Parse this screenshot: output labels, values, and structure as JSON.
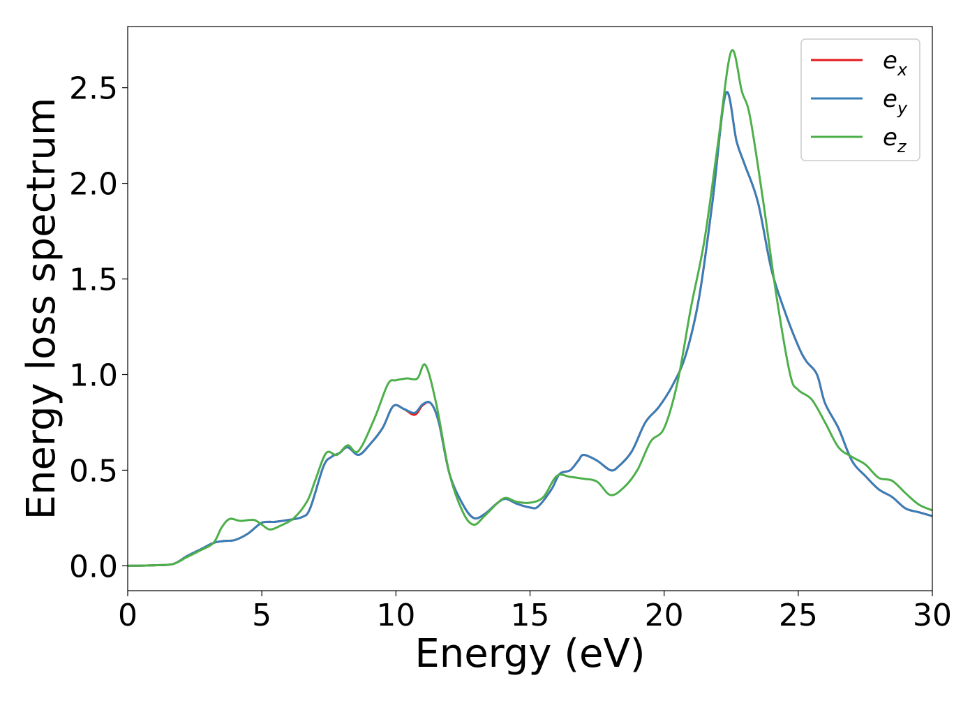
{
  "chart_data": {
    "type": "line",
    "title": "",
    "xlabel": "Energy (eV)",
    "ylabel": "Energy loss spectrum",
    "xlim": [
      0,
      30
    ],
    "ylim": [
      -0.13,
      2.82
    ],
    "xticks": [
      0,
      5,
      10,
      15,
      20,
      25,
      30
    ],
    "xtick_labels": [
      "0",
      "5",
      "10",
      "15",
      "20",
      "25",
      "30"
    ],
    "yticks": [
      0.0,
      0.5,
      1.0,
      1.5,
      2.0,
      2.5
    ],
    "ytick_labels": [
      "0.0",
      "0.5",
      "1.0",
      "1.5",
      "2.0",
      "2.5"
    ],
    "grid": false,
    "legend_position": "top-right",
    "series": [
      {
        "name": "e_x",
        "legend_main": "e",
        "legend_sub": "x",
        "color": "#e41a1c",
        "points": [
          [
            0,
            0
          ],
          [
            1,
            0.003
          ],
          [
            1.7,
            0.01
          ],
          [
            2.2,
            0.05
          ],
          [
            2.7,
            0.085
          ],
          [
            3.2,
            0.12
          ],
          [
            3.6,
            0.13
          ],
          [
            4.0,
            0.135
          ],
          [
            4.5,
            0.17
          ],
          [
            5.0,
            0.225
          ],
          [
            5.5,
            0.23
          ],
          [
            6.0,
            0.24
          ],
          [
            6.5,
            0.255
          ],
          [
            6.8,
            0.3
          ],
          [
            7.3,
            0.52
          ],
          [
            7.6,
            0.57
          ],
          [
            7.9,
            0.59
          ],
          [
            8.2,
            0.62
          ],
          [
            8.6,
            0.58
          ],
          [
            9.0,
            0.63
          ],
          [
            9.5,
            0.72
          ],
          [
            9.9,
            0.835
          ],
          [
            10.3,
            0.82
          ],
          [
            10.7,
            0.79
          ],
          [
            11.0,
            0.84
          ],
          [
            11.3,
            0.85
          ],
          [
            11.6,
            0.75
          ],
          [
            12.0,
            0.48
          ],
          [
            12.5,
            0.32
          ],
          [
            12.9,
            0.25
          ],
          [
            13.3,
            0.27
          ],
          [
            13.8,
            0.33
          ],
          [
            14.1,
            0.35
          ],
          [
            14.5,
            0.325
          ],
          [
            15.0,
            0.305
          ],
          [
            15.3,
            0.31
          ],
          [
            15.8,
            0.4
          ],
          [
            16.1,
            0.48
          ],
          [
            16.5,
            0.5
          ],
          [
            16.8,
            0.55
          ],
          [
            17.0,
            0.58
          ],
          [
            17.5,
            0.55
          ],
          [
            18.0,
            0.5
          ],
          [
            18.3,
            0.52
          ],
          [
            18.8,
            0.6
          ],
          [
            19.3,
            0.75
          ],
          [
            19.8,
            0.83
          ],
          [
            20.3,
            0.94
          ],
          [
            20.8,
            1.1
          ],
          [
            21.3,
            1.4
          ],
          [
            21.8,
            1.9
          ],
          [
            22.3,
            2.47
          ],
          [
            22.7,
            2.22
          ],
          [
            23.0,
            2.1
          ],
          [
            23.5,
            1.9
          ],
          [
            24.0,
            1.55
          ],
          [
            24.5,
            1.33
          ],
          [
            25.0,
            1.15
          ],
          [
            25.3,
            1.07
          ],
          [
            25.7,
            1.0
          ],
          [
            26.0,
            0.85
          ],
          [
            26.5,
            0.72
          ],
          [
            27.0,
            0.55
          ],
          [
            27.5,
            0.47
          ],
          [
            28.0,
            0.4
          ],
          [
            28.5,
            0.36
          ],
          [
            29.0,
            0.3
          ],
          [
            29.5,
            0.28
          ],
          [
            30,
            0.26
          ]
        ]
      },
      {
        "name": "e_y",
        "legend_main": "e",
        "legend_sub": "y",
        "color": "#377eb8",
        "points": [
          [
            0,
            0
          ],
          [
            1,
            0.003
          ],
          [
            1.7,
            0.01
          ],
          [
            2.2,
            0.05
          ],
          [
            2.7,
            0.085
          ],
          [
            3.2,
            0.12
          ],
          [
            3.6,
            0.13
          ],
          [
            4.0,
            0.135
          ],
          [
            4.5,
            0.17
          ],
          [
            5.0,
            0.225
          ],
          [
            5.5,
            0.23
          ],
          [
            6.0,
            0.24
          ],
          [
            6.5,
            0.255
          ],
          [
            6.8,
            0.3
          ],
          [
            7.3,
            0.52
          ],
          [
            7.6,
            0.57
          ],
          [
            7.9,
            0.59
          ],
          [
            8.2,
            0.62
          ],
          [
            8.6,
            0.58
          ],
          [
            9.0,
            0.63
          ],
          [
            9.5,
            0.72
          ],
          [
            9.9,
            0.835
          ],
          [
            10.3,
            0.82
          ],
          [
            10.7,
            0.8
          ],
          [
            11.0,
            0.845
          ],
          [
            11.3,
            0.85
          ],
          [
            11.6,
            0.75
          ],
          [
            12.0,
            0.48
          ],
          [
            12.5,
            0.32
          ],
          [
            12.9,
            0.25
          ],
          [
            13.3,
            0.27
          ],
          [
            13.8,
            0.33
          ],
          [
            14.1,
            0.35
          ],
          [
            14.5,
            0.325
          ],
          [
            15.0,
            0.305
          ],
          [
            15.3,
            0.31
          ],
          [
            15.8,
            0.4
          ],
          [
            16.1,
            0.48
          ],
          [
            16.5,
            0.5
          ],
          [
            16.8,
            0.55
          ],
          [
            17.0,
            0.58
          ],
          [
            17.5,
            0.55
          ],
          [
            18.0,
            0.5
          ],
          [
            18.3,
            0.52
          ],
          [
            18.8,
            0.6
          ],
          [
            19.3,
            0.75
          ],
          [
            19.8,
            0.83
          ],
          [
            20.3,
            0.94
          ],
          [
            20.8,
            1.1
          ],
          [
            21.3,
            1.4
          ],
          [
            21.8,
            1.9
          ],
          [
            22.3,
            2.47
          ],
          [
            22.7,
            2.22
          ],
          [
            23.0,
            2.1
          ],
          [
            23.5,
            1.9
          ],
          [
            24.0,
            1.55
          ],
          [
            24.5,
            1.33
          ],
          [
            25.0,
            1.15
          ],
          [
            25.3,
            1.07
          ],
          [
            25.7,
            1.0
          ],
          [
            26.0,
            0.85
          ],
          [
            26.5,
            0.72
          ],
          [
            27.0,
            0.55
          ],
          [
            27.5,
            0.47
          ],
          [
            28.0,
            0.4
          ],
          [
            28.5,
            0.36
          ],
          [
            29.0,
            0.3
          ],
          [
            29.5,
            0.28
          ],
          [
            30,
            0.26
          ]
        ]
      },
      {
        "name": "e_z",
        "legend_main": "e",
        "legend_sub": "z",
        "color": "#4daf4a",
        "points": [
          [
            0,
            0
          ],
          [
            1,
            0.003
          ],
          [
            1.7,
            0.01
          ],
          [
            2.2,
            0.045
          ],
          [
            2.7,
            0.08
          ],
          [
            3.2,
            0.12
          ],
          [
            3.5,
            0.2
          ],
          [
            3.8,
            0.245
          ],
          [
            4.2,
            0.235
          ],
          [
            4.7,
            0.24
          ],
          [
            5.0,
            0.215
          ],
          [
            5.3,
            0.19
          ],
          [
            5.7,
            0.21
          ],
          [
            6.2,
            0.25
          ],
          [
            6.7,
            0.34
          ],
          [
            7.0,
            0.45
          ],
          [
            7.4,
            0.59
          ],
          [
            7.8,
            0.58
          ],
          [
            8.2,
            0.63
          ],
          [
            8.6,
            0.6
          ],
          [
            9.2,
            0.77
          ],
          [
            9.7,
            0.95
          ],
          [
            10.0,
            0.97
          ],
          [
            10.4,
            0.98
          ],
          [
            10.8,
            0.98
          ],
          [
            11.1,
            1.05
          ],
          [
            11.5,
            0.85
          ],
          [
            12.0,
            0.48
          ],
          [
            12.5,
            0.28
          ],
          [
            12.9,
            0.215
          ],
          [
            13.3,
            0.26
          ],
          [
            13.8,
            0.33
          ],
          [
            14.1,
            0.355
          ],
          [
            14.5,
            0.335
          ],
          [
            15.0,
            0.33
          ],
          [
            15.5,
            0.36
          ],
          [
            16.0,
            0.47
          ],
          [
            16.5,
            0.465
          ],
          [
            17.0,
            0.455
          ],
          [
            17.5,
            0.44
          ],
          [
            18.0,
            0.37
          ],
          [
            18.5,
            0.41
          ],
          [
            19.0,
            0.5
          ],
          [
            19.5,
            0.65
          ],
          [
            20.0,
            0.72
          ],
          [
            20.5,
            0.96
          ],
          [
            21.0,
            1.35
          ],
          [
            21.5,
            1.7
          ],
          [
            22.0,
            2.2
          ],
          [
            22.5,
            2.69
          ],
          [
            22.9,
            2.48
          ],
          [
            23.2,
            2.35
          ],
          [
            23.7,
            1.9
          ],
          [
            24.2,
            1.4
          ],
          [
            24.7,
            1.0
          ],
          [
            25.0,
            0.92
          ],
          [
            25.5,
            0.87
          ],
          [
            26.0,
            0.75
          ],
          [
            26.5,
            0.62
          ],
          [
            27.0,
            0.57
          ],
          [
            27.5,
            0.53
          ],
          [
            28.0,
            0.46
          ],
          [
            28.5,
            0.445
          ],
          [
            29.0,
            0.38
          ],
          [
            29.5,
            0.32
          ],
          [
            30,
            0.29
          ]
        ]
      }
    ]
  }
}
